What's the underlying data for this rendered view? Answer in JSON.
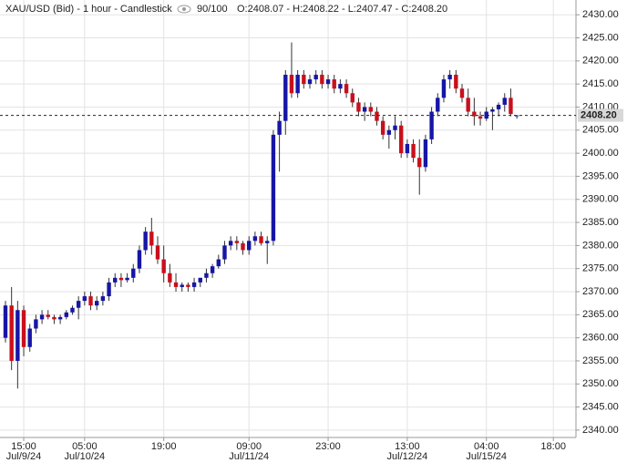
{
  "chart_data": {
    "type": "candlestick",
    "title": "XAU/USD (Bid) - 1 hour - Candlestick",
    "zoom": "90/100",
    "ohlc": "O:2408.07 - H:2408.22 - L:2407.47 - C:2408.20",
    "categories": [
      null,
      null,
      null,
      "15:00",
      null,
      null,
      null,
      null,
      null,
      null,
      null,
      null,
      null,
      "05:00",
      null,
      null,
      null,
      null,
      null,
      null,
      null,
      null,
      null,
      null,
      null,
      null,
      "19:00",
      null,
      null,
      null,
      null,
      null,
      null,
      null,
      null,
      null,
      null,
      null,
      null,
      null,
      "09:00",
      null,
      null,
      null,
      null,
      null,
      null,
      null,
      null,
      null,
      null,
      null,
      null,
      "23:00",
      null,
      null,
      null,
      null,
      null,
      null,
      null,
      null,
      null,
      null,
      null,
      null,
      "13:00",
      null,
      null,
      null,
      null,
      null,
      null,
      null,
      null,
      null,
      null,
      null,
      null,
      "04:00",
      null,
      null,
      null,
      null,
      null,
      null,
      null,
      null,
      null,
      null,
      "18:00"
    ],
    "dates": [
      null,
      null,
      null,
      "Jul/9/24",
      null,
      null,
      null,
      null,
      null,
      null,
      null,
      null,
      null,
      "Jul/10/24",
      null,
      null,
      null,
      null,
      null,
      null,
      null,
      null,
      null,
      null,
      null,
      null,
      null,
      null,
      null,
      null,
      null,
      null,
      null,
      null,
      null,
      null,
      null,
      null,
      null,
      null,
      "Jul/11/24",
      null,
      null,
      null,
      null,
      null,
      null,
      null,
      null,
      null,
      null,
      null,
      null,
      null,
      null,
      null,
      null,
      null,
      null,
      null,
      null,
      null,
      null,
      null,
      null,
      null,
      "Jul/12/24",
      null,
      null,
      null,
      null,
      null,
      null,
      null,
      null,
      null,
      null,
      null,
      null,
      "Jul/15/24",
      null,
      null,
      null,
      null,
      null,
      null,
      null,
      null,
      null,
      null,
      null
    ],
    "open": [
      2360,
      2367,
      2355,
      2366,
      2358,
      2362,
      2364,
      2365,
      2364.5,
      2364,
      2364.5,
      2365.5,
      2366.5,
      2368,
      2369,
      2367,
      2368,
      2369,
      2372,
      2373,
      2372.5,
      2373,
      2375,
      2379,
      2383,
      2380,
      2377,
      2374,
      2372,
      2371,
      2371.5,
      2371,
      2372,
      2373,
      2374,
      2375.5,
      2377,
      2380,
      2381,
      2380.5,
      2379,
      2381,
      2382,
      2380.5,
      2381,
      2404,
      2407,
      2417,
      2413,
      2417,
      2415,
      2416,
      2417,
      2415,
      2416,
      2414,
      2415,
      2413,
      2411,
      2409,
      2410,
      2409,
      2407,
      2404,
      2405,
      2406,
      2400,
      2402,
      2399,
      2397,
      2403,
      2409,
      2412,
      2416,
      2417,
      2414,
      2412,
      2409,
      2408,
      2407.5,
      2409,
      2409.5,
      2410.5,
      2412,
      2408.07,
      null,
      null,
      null,
      null,
      null,
      null
    ],
    "high": [
      2368,
      2371,
      2368,
      2367,
      2363,
      2365,
      2366,
      2366,
      2365,
      2365,
      2366,
      2367,
      2369,
      2370,
      2370,
      2369,
      2370,
      2373,
      2374,
      2374,
      2374,
      2376,
      2380,
      2384,
      2386,
      2382,
      2380,
      2376,
      2374,
      2372,
      2372,
      2373,
      2373,
      2375,
      2376,
      2378,
      2381,
      2382,
      2382,
      2381,
      2382,
      2383,
      2383,
      2382,
      2405,
      2409,
      2418,
      2424,
      2418,
      2418,
      2417,
      2418,
      2418,
      2417,
      2417,
      2416,
      2416,
      2414,
      2412,
      2411,
      2411,
      2410,
      2408,
      2406,
      2408,
      2407,
      2403,
      2403,
      2403,
      2404,
      2410,
      2413,
      2417,
      2418,
      2418,
      2415,
      2414,
      2412,
      2409,
      2410,
      2410,
      2411,
      2413,
      2414,
      2408.22,
      null,
      null,
      null,
      null,
      null,
      null
    ],
    "low": [
      2359,
      2353,
      2349,
      2356,
      2357,
      2361,
      2363,
      2364,
      2363,
      2363,
      2364,
      2365,
      2364,
      2367,
      2366,
      2366,
      2367,
      2368,
      2371,
      2371,
      2372,
      2372,
      2374,
      2378,
      2378,
      2376,
      2372,
      2371,
      2370,
      2370,
      2370,
      2370,
      2371,
      2372,
      2373,
      2375,
      2376,
      2379,
      2379,
      2378,
      2378,
      2380,
      2380,
      2376,
      2380,
      2396,
      2404,
      2412,
      2412,
      2414,
      2414,
      2415,
      2414,
      2414,
      2413,
      2413,
      2412,
      2410,
      2408,
      2407,
      2408,
      2406,
      2403,
      2401,
      2403,
      2399,
      2399,
      2398,
      2391,
      2396,
      2402,
      2408,
      2411,
      2414,
      2413,
      2411,
      2408,
      2406,
      2406,
      2407,
      2405,
      2408,
      2409,
      2408,
      2407.47,
      null,
      null,
      null,
      null,
      null,
      null
    ],
    "close": [
      2367,
      2355,
      2366,
      2358,
      2362,
      2364,
      2365,
      2364.5,
      2364,
      2364.5,
      2365.5,
      2366.5,
      2368,
      2369,
      2367,
      2368,
      2369,
      2372,
      2373,
      2372.5,
      2373,
      2375,
      2379,
      2383,
      2380,
      2377,
      2374,
      2372,
      2371,
      2371.5,
      2371,
      2372,
      2373,
      2374,
      2375.5,
      2377,
      2380,
      2381,
      2380.5,
      2379,
      2381,
      2382,
      2380.5,
      2381,
      2404,
      2407,
      2417,
      2413,
      2417,
      2415,
      2416,
      2417,
      2415,
      2416,
      2414,
      2415,
      2413,
      2411,
      2409,
      2410,
      2409,
      2407,
      2404,
      2405,
      2406,
      2400,
      2402,
      2399,
      2397,
      2403,
      2409,
      2412,
      2416,
      2417,
      2414,
      2412,
      2409,
      2408,
      2407.5,
      2409,
      2409.5,
      2410.5,
      2412,
      2408.5,
      2408.2,
      null,
      null,
      null,
      null,
      null,
      null
    ],
    "up_color": "#1616a6",
    "down_color": "#c8101c",
    "last_price": {
      "value": 2408.2,
      "label": "2408.20"
    },
    "ylim": [
      2338.4,
      2433.2
    ],
    "yticks": [
      {
        "value": 2340,
        "label": "2340.00"
      },
      {
        "value": 2345,
        "label": "2345.00"
      },
      {
        "value": 2350,
        "label": "2350.00"
      },
      {
        "value": 2355,
        "label": "2355.00"
      },
      {
        "value": 2360,
        "label": "2360.00"
      },
      {
        "value": 2365,
        "label": "2365.00"
      },
      {
        "value": 2370,
        "label": "2370.00"
      },
      {
        "value": 2375,
        "label": "2375.00"
      },
      {
        "value": 2380,
        "label": "2380.00"
      },
      {
        "value": 2385,
        "label": "2385.00"
      },
      {
        "value": 2390,
        "label": "2390.00"
      },
      {
        "value": 2395,
        "label": "2395.00"
      },
      {
        "value": 2400,
        "label": "2400.00"
      },
      {
        "value": 2405,
        "label": "2405.00"
      },
      {
        "value": 2410,
        "label": "2410.00"
      },
      {
        "value": 2415,
        "label": "2415.00"
      },
      {
        "value": 2420,
        "label": "2420.00"
      },
      {
        "value": 2425,
        "label": "2425.00"
      },
      {
        "value": 2430,
        "label": "2430.00"
      }
    ],
    "grid": true
  }
}
